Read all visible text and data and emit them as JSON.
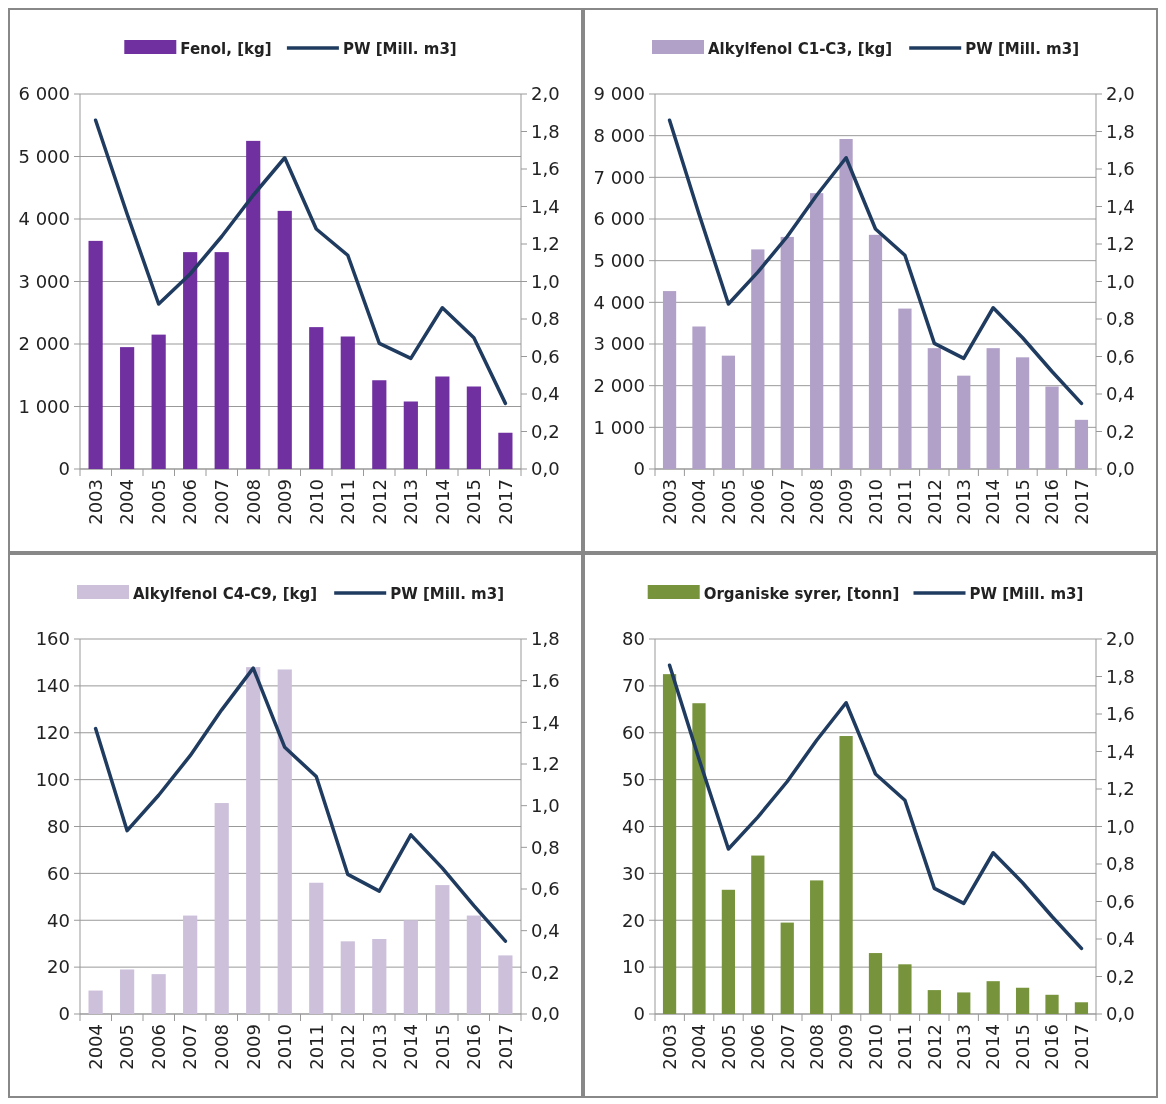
{
  "chart_data": [
    {
      "type": "bar",
      "categories": [
        "2003",
        "2004",
        "2005",
        "2006",
        "2007",
        "2008",
        "2009",
        "2010",
        "2011",
        "2012",
        "2013",
        "2014",
        "2015",
        "2017"
      ],
      "series": [
        {
          "name": "Fenol, [kg]",
          "color": "#7030a0",
          "values": [
            3650,
            1950,
            2150,
            3470,
            3470,
            5250,
            4130,
            2270,
            2120,
            1420,
            1080,
            1480,
            1320,
            580
          ]
        },
        {
          "name": "PW [Mill. m3]",
          "type": "line",
          "axis": "y2",
          "color": "#1f3b5f",
          "values": [
            1.86,
            1.36,
            0.88,
            1.04,
            1.24,
            1.46,
            1.66,
            1.28,
            1.14,
            0.67,
            0.59,
            0.86,
            0.7,
            0.35
          ]
        }
      ],
      "ylim": [
        0,
        6000
      ],
      "yticks": [
        {
          "value": 0,
          "label": "0"
        },
        {
          "value": 1000,
          "label": "1 000"
        },
        {
          "value": 2000,
          "label": "2 000"
        },
        {
          "value": 3000,
          "label": "3 000"
        },
        {
          "value": 4000,
          "label": "4 000"
        },
        {
          "value": 5000,
          "label": "5 000"
        },
        {
          "value": 6000,
          "label": "6 000"
        }
      ],
      "y2lim": [
        0,
        2
      ],
      "y2ticks": [
        {
          "value": 0,
          "label": "0,0"
        },
        {
          "value": 0.2,
          "label": "0,2"
        },
        {
          "value": 0.4,
          "label": "0,4"
        },
        {
          "value": 0.6,
          "label": "0,6"
        },
        {
          "value": 0.8,
          "label": "0,8"
        },
        {
          "value": 1,
          "label": "1,0"
        },
        {
          "value": 1.2,
          "label": "1,2"
        },
        {
          "value": 1.4,
          "label": "1,4"
        },
        {
          "value": 1.6,
          "label": "1,6"
        },
        {
          "value": 1.8,
          "label": "1,8"
        },
        {
          "value": 2,
          "label": "2,0"
        }
      ],
      "grid": "y",
      "legend": "top"
    },
    {
      "type": "bar",
      "categories": [
        "2003",
        "2004",
        "2005",
        "2006",
        "2007",
        "2008",
        "2009",
        "2010",
        "2011",
        "2012",
        "2013",
        "2014",
        "2015",
        "2016",
        "2017"
      ],
      "series": [
        {
          "name": "Alkylfenol C1-C3, [kg]",
          "color": "#b1a0c7",
          "values": [
            4270,
            3420,
            2720,
            5270,
            5570,
            6620,
            7920,
            5620,
            3850,
            2900,
            2240,
            2900,
            2680,
            1980,
            1180
          ]
        },
        {
          "name": "PW [Mill. m3]",
          "type": "line",
          "axis": "y2",
          "color": "#1f3b5f",
          "values": [
            1.86,
            1.36,
            0.88,
            1.05,
            1.24,
            1.46,
            1.66,
            1.28,
            1.14,
            0.67,
            0.59,
            0.86,
            0.7,
            0.52,
            0.35
          ]
        }
      ],
      "ylim": [
        0,
        9000
      ],
      "yticks": [
        {
          "value": 0,
          "label": "0"
        },
        {
          "value": 1000,
          "label": "1 000"
        },
        {
          "value": 2000,
          "label": "2 000"
        },
        {
          "value": 3000,
          "label": "3 000"
        },
        {
          "value": 4000,
          "label": "4 000"
        },
        {
          "value": 5000,
          "label": "5 000"
        },
        {
          "value": 6000,
          "label": "6 000"
        },
        {
          "value": 7000,
          "label": "7 000"
        },
        {
          "value": 8000,
          "label": "8 000"
        },
        {
          "value": 9000,
          "label": "9 000"
        }
      ],
      "y2lim": [
        0,
        2
      ],
      "y2ticks": [
        {
          "value": 0,
          "label": "0,0"
        },
        {
          "value": 0.2,
          "label": "0,2"
        },
        {
          "value": 0.4,
          "label": "0,4"
        },
        {
          "value": 0.6,
          "label": "0,6"
        },
        {
          "value": 0.8,
          "label": "0,8"
        },
        {
          "value": 1,
          "label": "1,0"
        },
        {
          "value": 1.2,
          "label": "1,2"
        },
        {
          "value": 1.4,
          "label": "1,4"
        },
        {
          "value": 1.6,
          "label": "1,6"
        },
        {
          "value": 1.8,
          "label": "1,8"
        },
        {
          "value": 2,
          "label": "2,0"
        }
      ],
      "grid": "y",
      "legend": "top"
    },
    {
      "type": "bar",
      "categories": [
        "2004",
        "2005",
        "2006",
        "2007",
        "2008",
        "2009",
        "2010",
        "2011",
        "2012",
        "2013",
        "2014",
        "2015",
        "2016",
        "2017"
      ],
      "series": [
        {
          "name": "Alkylfenol C4-C9, [kg]",
          "color": "#ccc0da",
          "values": [
            10,
            19,
            17,
            42,
            90,
            148,
            147,
            56,
            31,
            32,
            40,
            55,
            42,
            25
          ]
        },
        {
          "name": "PW [Mill. m3]",
          "type": "line",
          "axis": "y2",
          "color": "#1f3b5f",
          "values": [
            1.37,
            0.88,
            1.05,
            1.24,
            1.46,
            1.66,
            1.28,
            1.14,
            0.67,
            0.59,
            0.86,
            0.7,
            0.52,
            0.35
          ]
        }
      ],
      "ylim": [
        0,
        160
      ],
      "yticks": [
        0,
        20,
        40,
        60,
        80,
        100,
        120,
        140,
        160
      ],
      "y2lim": [
        0,
        1.8
      ],
      "y2ticks": [
        {
          "value": 0,
          "label": "0,0"
        },
        {
          "value": 0.2,
          "label": "0,2"
        },
        {
          "value": 0.4,
          "label": "0,4"
        },
        {
          "value": 0.6,
          "label": "0,6"
        },
        {
          "value": 0.8,
          "label": "0,8"
        },
        {
          "value": 1,
          "label": "1,0"
        },
        {
          "value": 1.2,
          "label": "1,2"
        },
        {
          "value": 1.4,
          "label": "1,4"
        },
        {
          "value": 1.6,
          "label": "1,6"
        },
        {
          "value": 1.8,
          "label": "1,8"
        }
      ],
      "grid": "y",
      "legend": "top"
    },
    {
      "type": "bar",
      "categories": [
        "2003",
        "2004",
        "2005",
        "2006",
        "2007",
        "2008",
        "2009",
        "2010",
        "2011",
        "2012",
        "2013",
        "2014",
        "2015",
        "2016",
        "2017"
      ],
      "series": [
        {
          "name": "Organiske syrer, [tonn]",
          "color": "#77933c",
          "values": [
            72.5,
            66.3,
            26.5,
            33.8,
            19.5,
            28.5,
            59.3,
            13,
            10.6,
            5.1,
            4.6,
            7,
            5.6,
            4.1,
            2.5
          ]
        },
        {
          "name": "PW [Mill. m3]",
          "type": "line",
          "axis": "y2",
          "color": "#1f3b5f",
          "values": [
            1.86,
            1.36,
            0.88,
            1.05,
            1.24,
            1.46,
            1.66,
            1.28,
            1.14,
            0.67,
            0.59,
            0.86,
            0.7,
            0.52,
            0.35
          ]
        }
      ],
      "ylim": [
        0,
        80
      ],
      "yticks": [
        0,
        10,
        20,
        30,
        40,
        50,
        60,
        70,
        80
      ],
      "y2lim": [
        0,
        2
      ],
      "y2ticks": [
        {
          "value": 0,
          "label": "0,0"
        },
        {
          "value": 0.2,
          "label": "0,2"
        },
        {
          "value": 0.4,
          "label": "0,4"
        },
        {
          "value": 0.6,
          "label": "0,6"
        },
        {
          "value": 0.8,
          "label": "0,8"
        },
        {
          "value": 1,
          "label": "1,0"
        },
        {
          "value": 1.2,
          "label": "1,2"
        },
        {
          "value": 1.4,
          "label": "1,4"
        },
        {
          "value": 1.6,
          "label": "1,6"
        },
        {
          "value": 1.8,
          "label": "1,8"
        },
        {
          "value": 2,
          "label": "2,0"
        }
      ],
      "grid": "y",
      "legend": "top"
    }
  ]
}
